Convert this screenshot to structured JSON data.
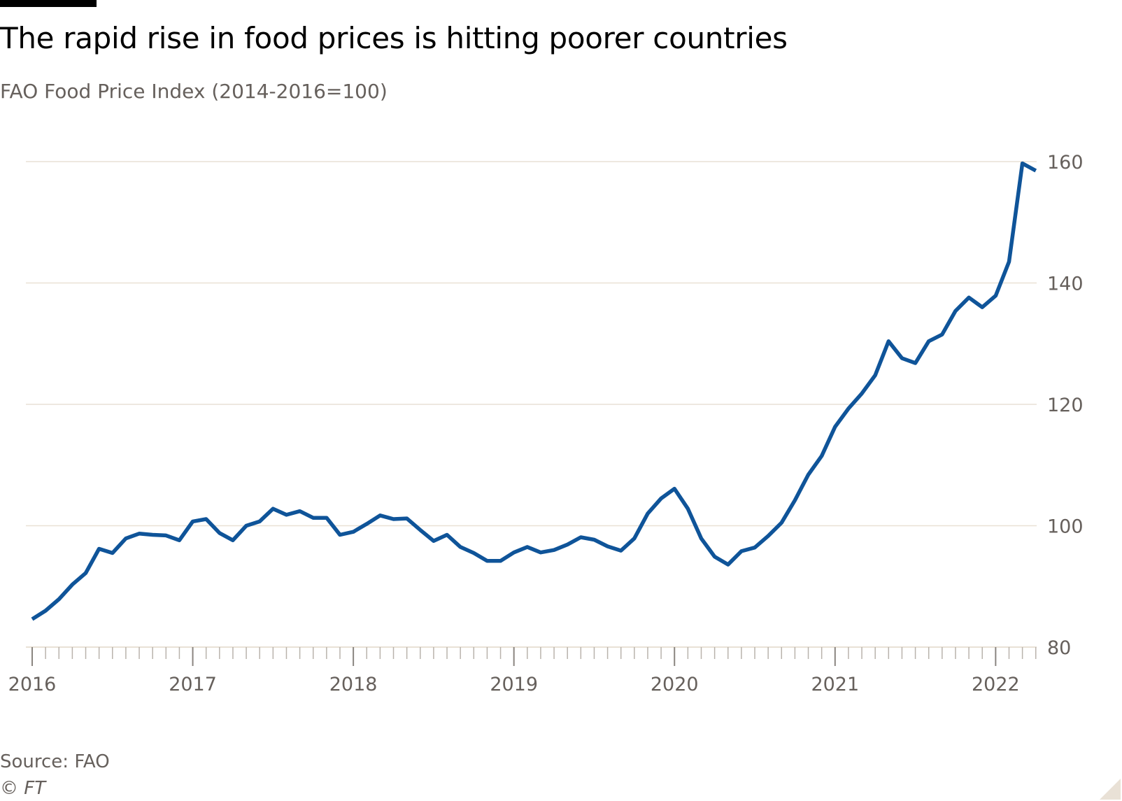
{
  "title": "The rapid rise in food prices is hitting poorer countries",
  "subtitle": "FAO Food Price Index (2014-2016=100)",
  "source": "Source: FAO",
  "copyright": "© FT",
  "colors": {
    "line": "#0f5499",
    "grid": "#e9e1d6",
    "text": "#66605c",
    "title": "#000000"
  },
  "chart_data": {
    "type": "line",
    "title": "The rapid rise in food prices is hitting poorer countries",
    "subtitle": "FAO Food Price Index (2014-2016=100)",
    "xlabel": "",
    "ylabel": "",
    "y_axis_position": "right",
    "ylim": [
      80,
      160
    ],
    "y_ticks": [
      80,
      100,
      120,
      140,
      160
    ],
    "x_ticks": [
      "2016",
      "2017",
      "2018",
      "2019",
      "2020",
      "2021",
      "2022"
    ],
    "grid": true,
    "series": [
      {
        "frequency": "monthly",
        "start": "2016-01",
        "x": [
          "2016-01",
          "2016-02",
          "2016-03",
          "2016-04",
          "2016-05",
          "2016-06",
          "2016-07",
          "2016-08",
          "2016-09",
          "2016-10",
          "2016-11",
          "2016-12",
          "2017-01",
          "2017-02",
          "2017-03",
          "2017-04",
          "2017-05",
          "2017-06",
          "2017-07",
          "2017-08",
          "2017-09",
          "2017-10",
          "2017-11",
          "2017-12",
          "2018-01",
          "2018-02",
          "2018-03",
          "2018-04",
          "2018-05",
          "2018-06",
          "2018-07",
          "2018-08",
          "2018-09",
          "2018-10",
          "2018-11",
          "2018-12",
          "2019-01",
          "2019-02",
          "2019-03",
          "2019-04",
          "2019-05",
          "2019-06",
          "2019-07",
          "2019-08",
          "2019-09",
          "2019-10",
          "2019-11",
          "2019-12",
          "2020-01",
          "2020-02",
          "2020-03",
          "2020-04",
          "2020-05",
          "2020-06",
          "2020-07",
          "2020-08",
          "2020-09",
          "2020-10",
          "2020-11",
          "2020-12",
          "2021-01",
          "2021-02",
          "2021-03",
          "2021-04",
          "2021-05",
          "2021-06",
          "2021-07",
          "2021-08",
          "2021-09",
          "2021-10",
          "2021-11",
          "2021-12",
          "2022-01",
          "2022-02",
          "2022-03",
          "2022-04"
        ],
        "values": [
          84.6,
          86.0,
          87.9,
          90.3,
          92.2,
          96.2,
          95.5,
          97.9,
          98.7,
          98.5,
          98.4,
          97.6,
          100.7,
          101.1,
          98.8,
          97.6,
          100.0,
          100.7,
          102.8,
          101.8,
          102.4,
          101.3,
          101.3,
          98.5,
          99.0,
          100.3,
          101.7,
          101.1,
          101.2,
          99.3,
          97.5,
          98.5,
          96.5,
          95.5,
          94.2,
          94.2,
          95.6,
          96.5,
          95.6,
          96.0,
          96.9,
          98.1,
          97.7,
          96.6,
          95.9,
          97.9,
          102.0,
          104.5,
          106.1,
          102.8,
          97.9,
          94.9,
          93.6,
          95.8,
          96.4,
          98.3,
          100.5,
          104.2,
          108.4,
          111.5,
          116.3,
          119.3,
          121.8,
          124.8,
          130.4,
          127.6,
          126.8,
          130.4,
          131.5,
          135.4,
          137.6,
          136.0,
          137.9,
          143.5,
          159.7,
          158.5
        ]
      }
    ]
  }
}
